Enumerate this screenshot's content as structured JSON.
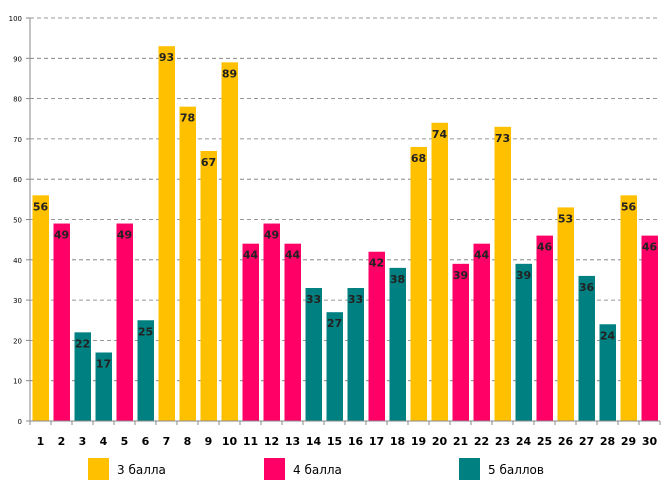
{
  "chart_data": {
    "type": "bar",
    "title": "",
    "xlabel": "",
    "ylabel": "",
    "ylim": [
      0,
      100
    ],
    "yticks": [
      0,
      10,
      20,
      30,
      40,
      50,
      60,
      70,
      80,
      90,
      100
    ],
    "grid": true,
    "legend_position": "bottom",
    "categories": [
      "1",
      "2",
      "3",
      "4",
      "5",
      "6",
      "7",
      "8",
      "9",
      "10",
      "11",
      "12",
      "13",
      "14",
      "15",
      "16",
      "17",
      "18",
      "19",
      "20",
      "21",
      "22",
      "23",
      "24",
      "25",
      "26",
      "27",
      "28",
      "29",
      "30"
    ],
    "values": [
      56,
      49,
      22,
      17,
      49,
      25,
      93,
      78,
      67,
      89,
      44,
      49,
      44,
      33,
      27,
      33,
      42,
      38,
      68,
      74,
      39,
      44,
      73,
      39,
      46,
      53,
      36,
      24,
      56,
      46
    ],
    "groups": [
      0,
      1,
      2,
      2,
      1,
      2,
      0,
      0,
      0,
      0,
      1,
      1,
      1,
      2,
      2,
      2,
      1,
      2,
      0,
      0,
      1,
      1,
      0,
      2,
      1,
      0,
      2,
      2,
      0,
      1
    ],
    "legend": [
      {
        "name": "3 балла",
        "color": "#FFC000"
      },
      {
        "name": "4 балла",
        "color": "#FF0066"
      },
      {
        "name": "5 баллов",
        "color": "#008080"
      }
    ]
  }
}
